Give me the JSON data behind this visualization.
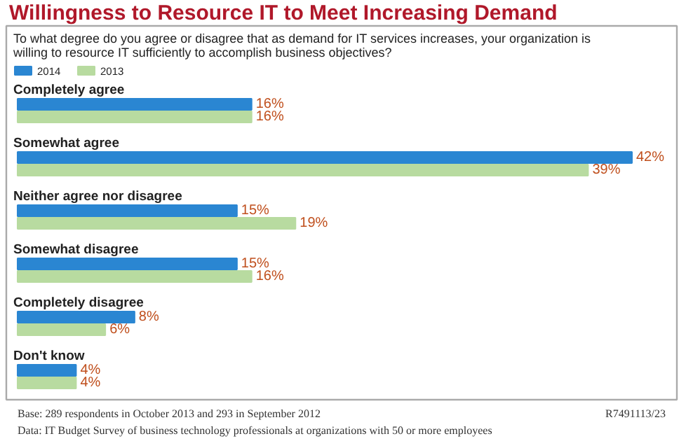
{
  "chart_data": {
    "type": "bar",
    "orientation": "horizontal",
    "legend": "top left",
    "title": "Willingness to Resource IT to Meet Increasing Demand",
    "subtitle": "To what degree do you agree or disagree that as demand for IT services increases, your organization is willing to resource IT sufficiently to accomplish business objectives?",
    "categories": [
      "Completely agree",
      "Somewhat agree",
      "Neither agree nor disagree",
      "Somewhat disagree",
      "Completely disagree",
      "Don't know"
    ],
    "series": [
      {
        "name": "2014",
        "color": "#2a86d2",
        "values": [
          16,
          42,
          15,
          15,
          8,
          4
        ],
        "value_labels": [
          "16%",
          "42%",
          "15%",
          "15%",
          "8%",
          "4%"
        ]
      },
      {
        "name": "2013",
        "color": "#b8dba0",
        "values": [
          16,
          39,
          19,
          16,
          6,
          4
        ],
        "value_labels": [
          "16%",
          "39%",
          "19%",
          "16%",
          "6%",
          "4%"
        ]
      }
    ],
    "annotations": [
      "Base: 289 respondents in October 2013 and 293 in September 2012",
      "R7491113/23",
      "Data: IT Budget Survey of business technology professionals at organizations with 50 or more employees"
    ]
  }
}
